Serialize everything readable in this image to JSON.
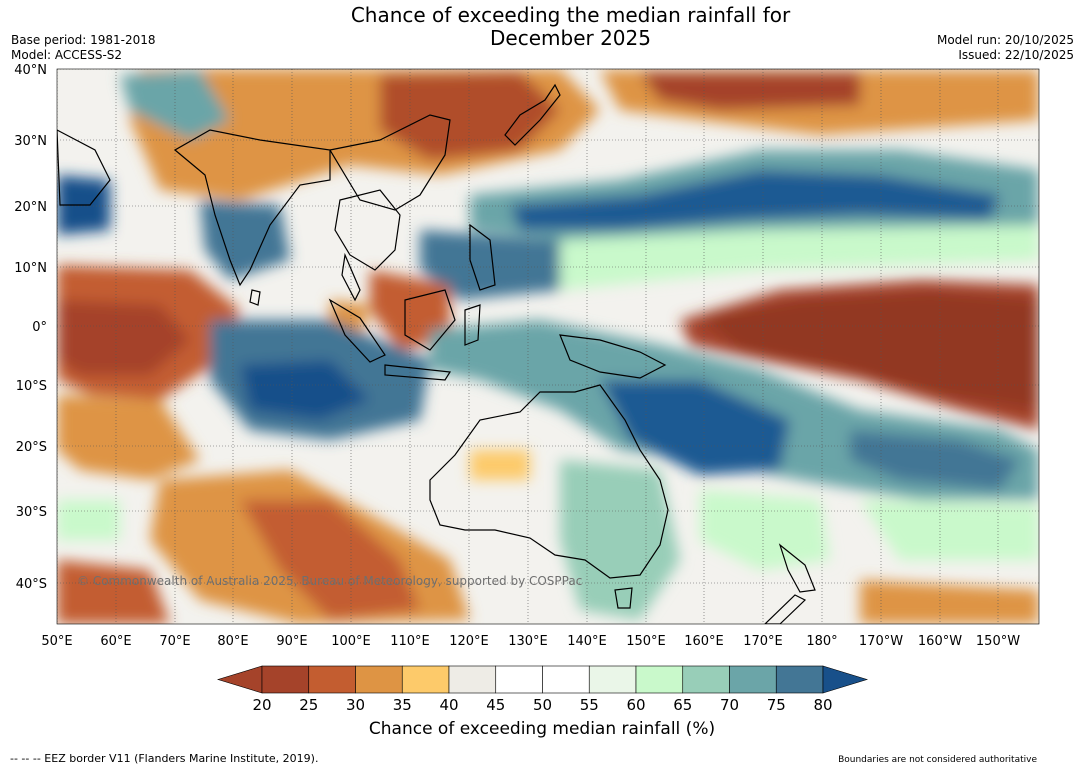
{
  "title_line1": "Chance of exceeding the median rainfall for",
  "title_line2": "December 2025",
  "meta_left": {
    "base_period": "Base period: 1981-2018",
    "model": "Model: ACCESS-S2"
  },
  "meta_right": {
    "model_run": "Model run: 20/10/2025",
    "issued": "Issued: 22/10/2025"
  },
  "copyright": "© Commonwealth of Australia 2025, Bureau of Meteorology, supported by COSPPac",
  "lat_labels": [
    "40°N",
    "30°N",
    "20°N",
    "10°N",
    "0°",
    "10°S",
    "20°S",
    "30°S",
    "40°S"
  ],
  "lon_labels": [
    "50°E",
    "60°E",
    "70°E",
    "80°E",
    "90°E",
    "100°E",
    "110°E",
    "120°E",
    "130°E",
    "140°E",
    "150°E",
    "160°E",
    "170°E",
    "180°",
    "170°W",
    "160°W",
    "150°W"
  ],
  "colorbar": {
    "ticks": [
      "20",
      "25",
      "30",
      "35",
      "40",
      "45",
      "50",
      "55",
      "60",
      "65",
      "70",
      "75",
      "80"
    ],
    "colors": [
      "#a5432a",
      "#c35d30",
      "#de9444",
      "#fdca6a",
      "#eeece6",
      "#ffffff",
      "#ffffff",
      "#eaf6e8",
      "#c9f9cb",
      "#98ceb8",
      "#6ba5a8",
      "#437695",
      "#18508a"
    ],
    "label": "Chance of exceeding median rainfall (%)"
  },
  "footer_left": "-- -- -- EEZ border V11 (Flanders Marine Institute, 2019).",
  "footer_right": "Boundaries are not considered authoritative"
}
